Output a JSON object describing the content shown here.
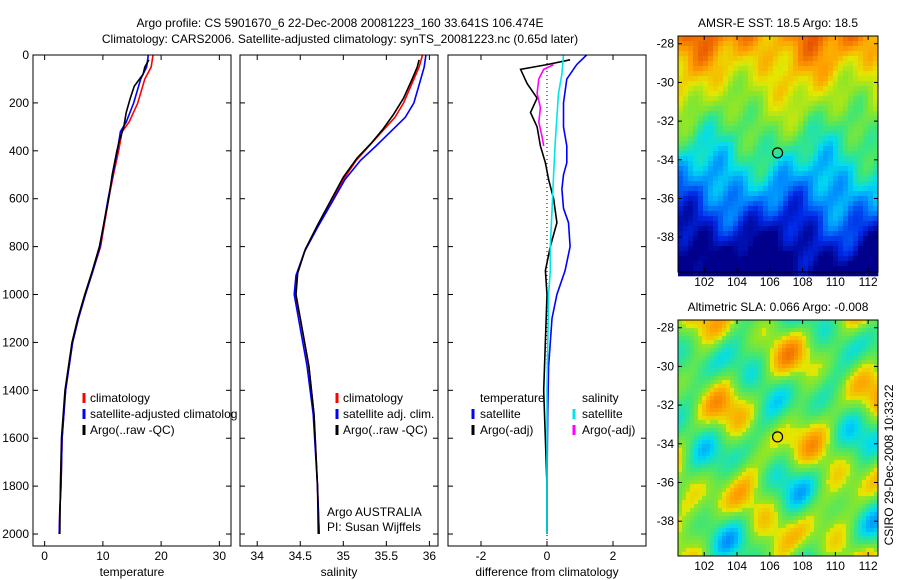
{
  "header": {
    "line1": "Argo profile: CS 5901670_6 22-Dec-2008 20081223_160 33.641S 106.474E",
    "line2": "Climatology: CARS2006. Satellite-adjusted climatology: synTS_20081223.nc (0.65d later)"
  },
  "colors": {
    "climatology": "#ff0000",
    "satellite": "#0000ff",
    "argo": "#000000",
    "sat_salinity": "#00e5e5",
    "argo_adj_salinity": "#ff00ff"
  },
  "chart_data": [
    {
      "type": "line",
      "panel": "temperature",
      "xlabel": "temperature",
      "xlim": [
        -2,
        32
      ],
      "ylim": [
        0,
        2050
      ],
      "xticks": [
        0,
        10,
        20,
        30
      ],
      "yticks": [
        0,
        200,
        400,
        600,
        800,
        1000,
        1200,
        1400,
        1600,
        1800,
        2000
      ],
      "legend": [
        "climatology",
        "satellite-adjusted climatolog",
        "Argo(..raw -QC)"
      ],
      "series": [
        {
          "name": "climatology",
          "color": "#ff0000",
          "x": [
            18.6,
            18.3,
            17.2,
            16.0,
            14.5,
            13.3,
            12.7,
            11.8,
            11.0,
            10.3,
            9.6,
            8.3,
            7.0,
            5.8,
            4.8,
            3.6,
            3.0,
            2.8,
            2.6,
            2.5
          ],
          "y": [
            0,
            50,
            100,
            200,
            280,
            320,
            400,
            500,
            600,
            700,
            800,
            900,
            1000,
            1100,
            1200,
            1400,
            1600,
            1800,
            1900,
            2000
          ]
        },
        {
          "name": "satellite-adjusted climatolog",
          "color": "#0000ff",
          "x": [
            17.8,
            17.5,
            16.5,
            15.3,
            14.0,
            13.0,
            12.5,
            11.7,
            10.9,
            10.2,
            9.5,
            8.3,
            7.0,
            5.8,
            4.8,
            3.6,
            3.0,
            2.8,
            2.6,
            2.5
          ],
          "y": [
            0,
            50,
            100,
            200,
            280,
            320,
            400,
            500,
            600,
            700,
            800,
            900,
            1000,
            1100,
            1200,
            1400,
            1600,
            1800,
            1900,
            2000
          ]
        },
        {
          "name": "Argo(..raw -QC)",
          "color": "#000000",
          "x": [
            17.9,
            17.2,
            16.9,
            15.4,
            14.7,
            14.0,
            13.6,
            12.8,
            12.4,
            11.6,
            11.0,
            10.2,
            9.4,
            8.2,
            6.9,
            5.7,
            4.7,
            3.5,
            2.9,
            2.7,
            2.6
          ],
          "y": [
            20,
            50,
            80,
            130,
            180,
            240,
            300,
            360,
            400,
            500,
            600,
            700,
            800,
            900,
            1000,
            1100,
            1200,
            1400,
            1600,
            1800,
            2000
          ]
        }
      ]
    },
    {
      "type": "line",
      "panel": "salinity",
      "xlabel": "salinity",
      "xlim": [
        33.8,
        36.1
      ],
      "ylim": [
        0,
        2050
      ],
      "xticks": [
        34,
        34.5,
        35,
        35.5,
        36
      ],
      "xticklabels": [
        "34",
        "34.5",
        "35",
        "35.5",
        "36"
      ],
      "legend": [
        "climatology",
        "satellite adj. clim.",
        "Argo(..raw -QC)"
      ],
      "annotation": [
        "Argo AUSTRALIA",
        "PI: Susan Wijffels"
      ],
      "series": [
        {
          "name": "climatology",
          "color": "#ff0000",
          "x": [
            35.92,
            35.88,
            35.82,
            35.7,
            35.6,
            35.45,
            35.3,
            35.15,
            35.0,
            34.85,
            34.7,
            34.55,
            34.46,
            34.44,
            34.5,
            34.6,
            34.66,
            34.7,
            34.72
          ],
          "y": [
            0,
            50,
            100,
            200,
            260,
            320,
            380,
            440,
            520,
            620,
            720,
            820,
            920,
            1000,
            1100,
            1300,
            1500,
            1800,
            2000
          ]
        },
        {
          "name": "satellite adj. clim.",
          "color": "#0000ff",
          "x": [
            35.96,
            35.94,
            35.9,
            35.82,
            35.72,
            35.55,
            35.38,
            35.2,
            35.02,
            34.86,
            34.7,
            34.55,
            34.45,
            34.43,
            34.48,
            34.58,
            34.65,
            34.7,
            34.72
          ],
          "y": [
            0,
            50,
            100,
            200,
            260,
            320,
            380,
            440,
            520,
            620,
            720,
            820,
            920,
            1000,
            1100,
            1300,
            1500,
            1800,
            2000
          ]
        },
        {
          "name": "Argo(..raw -QC)",
          "color": "#000000",
          "x": [
            35.88,
            35.86,
            35.8,
            35.7,
            35.58,
            35.46,
            35.32,
            35.16,
            35.0,
            34.85,
            34.7,
            34.56,
            34.47,
            34.45,
            34.5,
            34.6,
            34.66,
            34.7,
            34.71
          ],
          "y": [
            20,
            50,
            100,
            180,
            250,
            310,
            370,
            430,
            510,
            610,
            710,
            810,
            910,
            1000,
            1100,
            1300,
            1500,
            1800,
            2000
          ]
        }
      ]
    },
    {
      "type": "line",
      "panel": "difference",
      "xlabel": "difference from climatology",
      "xlim": [
        -3,
        3
      ],
      "ylim": [
        0,
        2050
      ],
      "xticks": [
        -2,
        0,
        2
      ],
      "legend": [
        "temperature",
        "satellite",
        "Argo(-adj)",
        "salinity",
        "satellite",
        "Argo(-adj)"
      ],
      "series": [
        {
          "name": "temperature satellite",
          "color": "#0000ff",
          "x": [
            1.2,
            0.9,
            0.6,
            0.5,
            0.5,
            0.6,
            0.6,
            0.5,
            0.45,
            0.5,
            0.65,
            0.7,
            0.55,
            0.3,
            0.15,
            0.05,
            0.02,
            0.0,
            0.0
          ],
          "y": [
            0,
            40,
            100,
            200,
            300,
            380,
            450,
            500,
            560,
            640,
            700,
            800,
            900,
            1000,
            1100,
            1300,
            1500,
            1800,
            2000
          ]
        },
        {
          "name": "temperature Argo(-adj)",
          "color": "#000000",
          "x": [
            0.7,
            0.0,
            -0.8,
            -0.6,
            -0.3,
            -0.5,
            -0.3,
            -0.2,
            -0.05,
            0.05,
            0.2,
            0.3,
            0.1,
            -0.05,
            0.0,
            -0.1,
            0.0,
            0.0
          ],
          "y": [
            20,
            40,
            60,
            120,
            180,
            240,
            300,
            380,
            450,
            520,
            600,
            700,
            800,
            900,
            1000,
            1400,
            1800,
            2000
          ]
        },
        {
          "name": "salinity satellite",
          "color": "#00e5e5",
          "x": [
            0.5,
            0.45,
            0.35,
            0.3,
            0.25,
            0.2,
            0.15,
            0.1,
            0.1,
            0.05,
            0.0,
            0.0
          ],
          "y": [
            0,
            80,
            160,
            260,
            360,
            500,
            650,
            800,
            900,
            1000,
            1400,
            2000
          ]
        },
        {
          "name": "salinity Argo(-adj)",
          "color": "#ff00ff",
          "x": [
            0.2,
            -0.1,
            -0.25,
            -0.3,
            -0.2,
            -0.25,
            -0.15,
            -0.1
          ],
          "y": [
            40,
            60,
            100,
            160,
            220,
            280,
            340,
            380
          ]
        }
      ]
    },
    {
      "type": "heatmap",
      "panel": "sst",
      "title": "AMSR-E SST: 18.5 Argo: 18.5",
      "xlim": [
        100.4,
        112.6
      ],
      "ylim": [
        -39.8,
        -27.6
      ],
      "xticks": [
        102,
        104,
        106,
        108,
        110,
        112
      ],
      "yticks": [
        -28,
        -30,
        -32,
        -34,
        -36,
        -38
      ],
      "marker": {
        "x": 106.474,
        "y": -33.641
      }
    },
    {
      "type": "heatmap",
      "panel": "sla",
      "title": "Altimetric SLA: 0.066 Argo: -0.008",
      "xlim": [
        100.4,
        112.6
      ],
      "ylim": [
        -39.8,
        -27.6
      ],
      "xticks": [
        102,
        104,
        106,
        108,
        110,
        112
      ],
      "yticks": [
        -28,
        -30,
        -32,
        -34,
        -36,
        -38
      ],
      "marker": {
        "x": 106.474,
        "y": -33.641
      }
    }
  ],
  "footer_vertical": "CSIRO 29-Dec-2008 10:33:22"
}
